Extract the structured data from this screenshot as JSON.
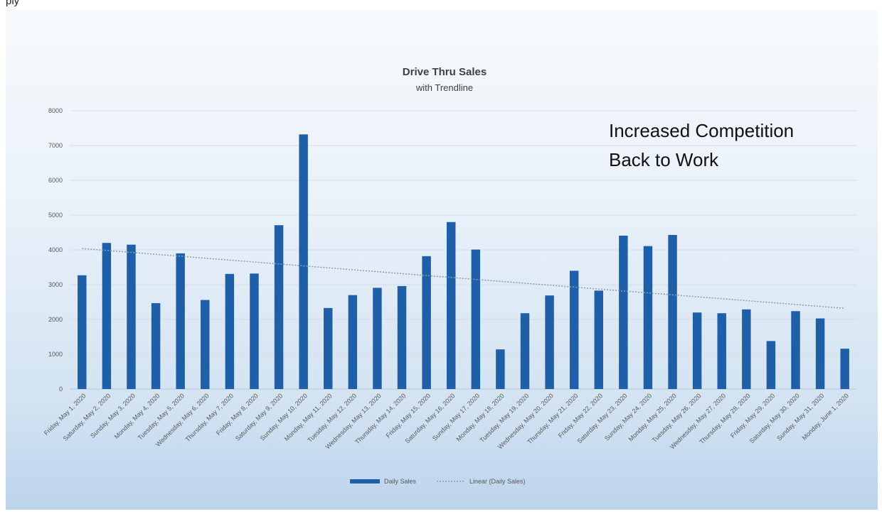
{
  "page": {
    "header_fragment": "ply"
  },
  "chart_data": {
    "type": "bar",
    "title": "Drive Thru Sales",
    "subtitle": "with Trendline",
    "xlabel": "",
    "ylabel": "",
    "ylim": [
      0,
      8000
    ],
    "yticks": [
      0,
      1000,
      2000,
      3000,
      4000,
      5000,
      6000,
      7000,
      8000
    ],
    "grid": true,
    "legend_position": "bottom",
    "categories": [
      "Friday, May 1, 2020",
      "Saturday, May 2, 2020",
      "Sunday, May 3, 2020",
      "Monday, May 4, 2020",
      "Tuesday, May 5, 2020",
      "Wednesday, May 6, 2020",
      "Thursday, May 7, 2020",
      "Friday, May 8, 2020",
      "Saturday, May 9, 2020",
      "Sunday, May 10, 2020",
      "Monday, May 11, 2020",
      "Tuesday, May 12, 2020",
      "Wednesday, May 13, 2020",
      "Thursday, May 14, 2020",
      "Friday, May 15, 2020",
      "Saturday, May 16, 2020",
      "Sunday, May 17, 2020",
      "Monday, May 18, 2020",
      "Tuesday, May 19, 2020",
      "Wednesday, May 20, 2020",
      "Thursday, May 21, 2020",
      "Friday, May 22, 2020",
      "Saturday, May 23, 2020",
      "Sunday, May 24, 2020",
      "Monday, May 25, 2020",
      "Tuesday, May 26, 2020",
      "Wednesday, May 27, 2020",
      "Thursday, May 28, 2020",
      "Friday, May 29, 2020",
      "Saturday, May 30, 2020",
      "Sunday, May 31, 2020",
      "Monday, June 1, 2020"
    ],
    "series": [
      {
        "name": "Daily Sales",
        "color": "#1f5fa8",
        "values": [
          3270,
          4200,
          4150,
          2470,
          3900,
          2560,
          3310,
          3320,
          4710,
          7320,
          2330,
          2700,
          2910,
          2960,
          3820,
          4800,
          4010,
          1140,
          2180,
          2690,
          3400,
          2830,
          4410,
          4110,
          4430,
          2200,
          2180,
          2290,
          1380,
          2240,
          2030,
          1160
        ]
      }
    ],
    "trendline": {
      "name": "Linear (Daily Sales)",
      "type": "linear",
      "color": "#8c9cb0",
      "start": 4040,
      "end": 2320
    },
    "annotations": [
      "Increased Competition",
      "Back to Work"
    ]
  }
}
